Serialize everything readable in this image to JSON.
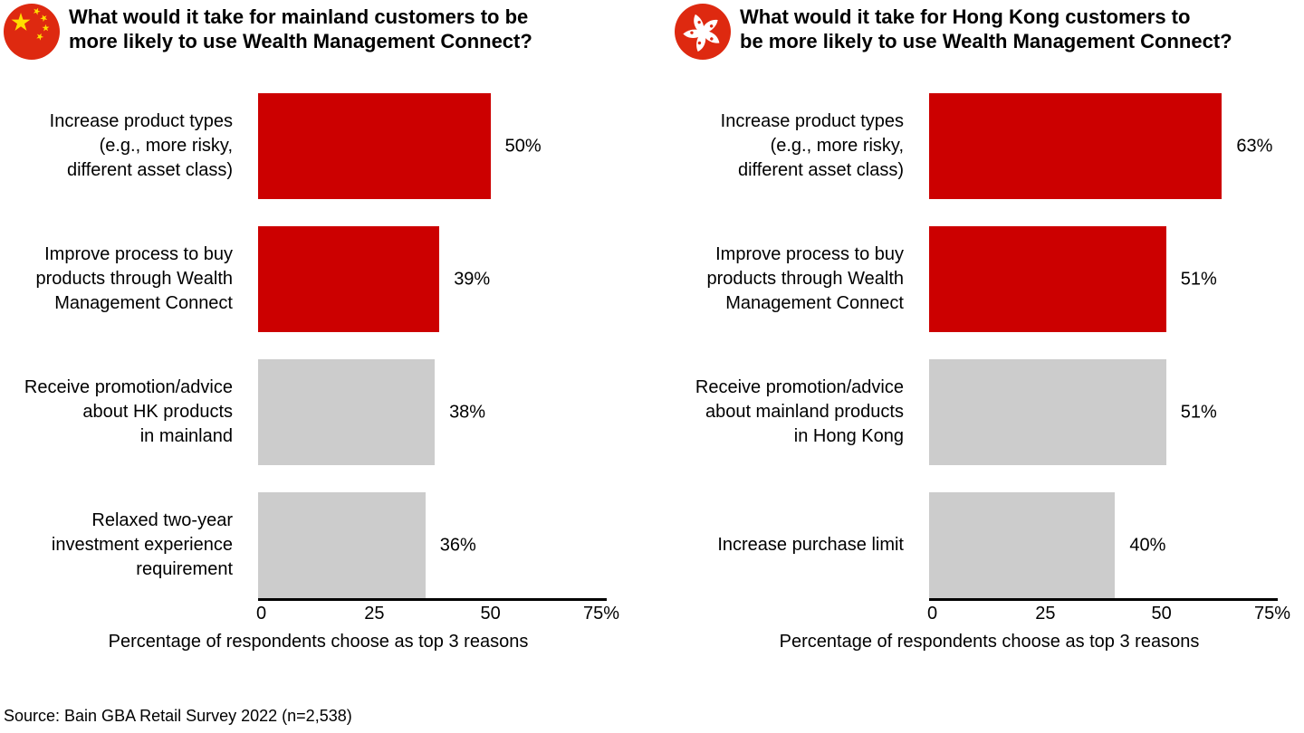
{
  "colors": {
    "bain_red": "#CC0000",
    "bar_gray": "#CCCCCC",
    "flag_red": "#DE2910",
    "star_yellow": "#FFDE00",
    "axis_black": "#000000"
  },
  "source_note": "Source: Bain GBA Retail Survey 2022 (n=2,538)",
  "chart_data": [
    {
      "type": "bar",
      "orientation": "horizontal",
      "flag_icon": "china-flag-icon",
      "title": "What would it take for mainland customers to be\nmore likely to use Wealth Management Connect?",
      "categories": [
        "Increase product types\n(e.g., more risky,\ndifferent asset class)",
        "Improve process to buy\nproducts through Wealth\nManagement Connect",
        "Receive promotion/advice\nabout HK products\nin mainland",
        "Relaxed two-year\ninvestment experience\nrequirement"
      ],
      "values": [
        50,
        39,
        38,
        36
      ],
      "value_labels": [
        "50%",
        "39%",
        "38%",
        "36%"
      ],
      "bar_colors": [
        "#CC0000",
        "#CC0000",
        "#CCCCCC",
        "#CCCCCC"
      ],
      "xlim": [
        0,
        75
      ],
      "xticks": [
        "0",
        "25",
        "50",
        "75%"
      ],
      "xlabel": "Percentage of respondents choose as top 3 reasons",
      "grid": false,
      "legend": false
    },
    {
      "type": "bar",
      "orientation": "horizontal",
      "flag_icon": "hong-kong-flag-icon",
      "title": "What would it take for Hong Kong customers to\nbe more likely to use Wealth Management Connect?",
      "categories": [
        "Increase product types\n(e.g., more risky,\ndifferent asset class)",
        "Improve process to buy\nproducts through Wealth\nManagement Connect",
        "Receive promotion/advice\nabout mainland products\nin Hong Kong",
        "Increase purchase limit"
      ],
      "values": [
        63,
        51,
        51,
        40
      ],
      "value_labels": [
        "63%",
        "51%",
        "51%",
        "40%"
      ],
      "bar_colors": [
        "#CC0000",
        "#CC0000",
        "#CCCCCC",
        "#CCCCCC"
      ],
      "xlim": [
        0,
        75
      ],
      "xticks": [
        "0",
        "25",
        "50",
        "75%"
      ],
      "xlabel": "Percentage of respondents choose as top 3 reasons",
      "grid": false,
      "legend": false
    }
  ]
}
